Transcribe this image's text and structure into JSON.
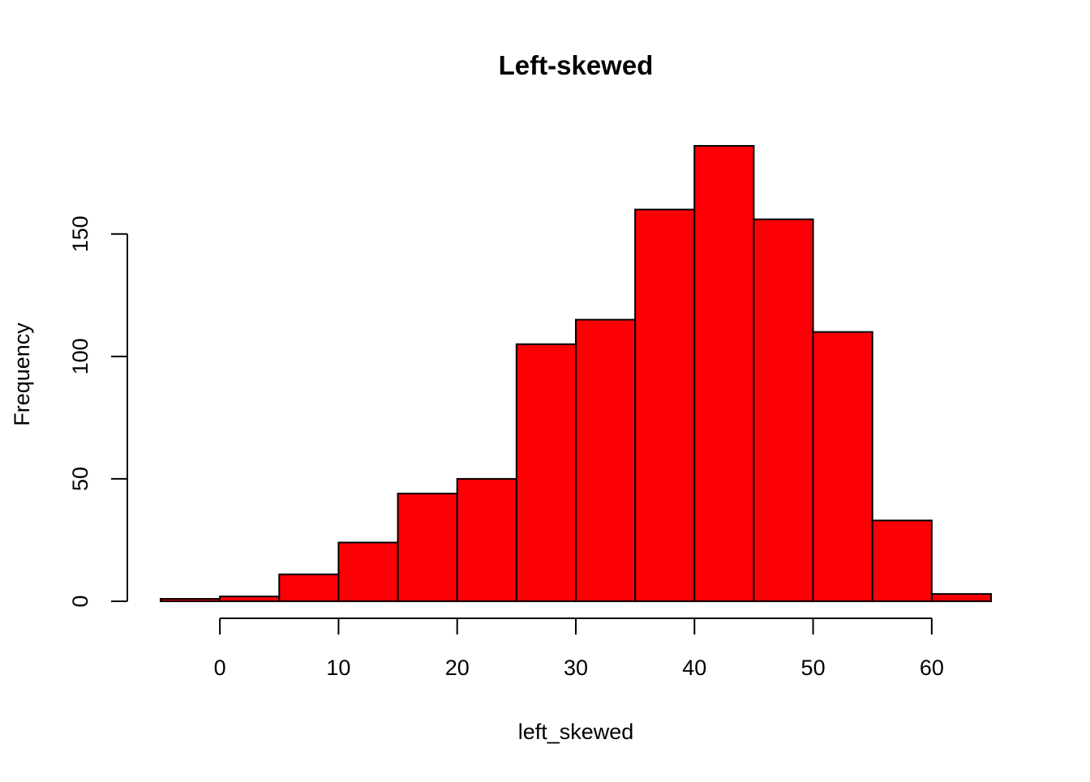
{
  "chart_data": {
    "type": "bar",
    "title": "Left-skewed",
    "xlabel": "left_skewed",
    "ylabel": "Frequency",
    "bins": [
      {
        "x0": -5,
        "x1": 0,
        "count": 1
      },
      {
        "x0": 0,
        "x1": 5,
        "count": 2
      },
      {
        "x0": 5,
        "x1": 10,
        "count": 11
      },
      {
        "x0": 10,
        "x1": 15,
        "count": 24
      },
      {
        "x0": 15,
        "x1": 20,
        "count": 44
      },
      {
        "x0": 20,
        "x1": 25,
        "count": 50
      },
      {
        "x0": 25,
        "x1": 30,
        "count": 105
      },
      {
        "x0": 30,
        "x1": 35,
        "count": 115
      },
      {
        "x0": 35,
        "x1": 40,
        "count": 160
      },
      {
        "x0": 40,
        "x1": 45,
        "count": 186
      },
      {
        "x0": 45,
        "x1": 50,
        "count": 156
      },
      {
        "x0": 50,
        "x1": 55,
        "count": 110
      },
      {
        "x0": 55,
        "x1": 60,
        "count": 33
      },
      {
        "x0": 60,
        "x1": 65,
        "count": 3
      }
    ],
    "xlim": [
      -5,
      65
    ],
    "ylim": [
      0,
      186
    ],
    "x_ticks": [
      "0",
      "10",
      "20",
      "30",
      "40",
      "50",
      "60"
    ],
    "y_ticks": [
      "0",
      "50",
      "100",
      "150"
    ],
    "grid": false,
    "bar_color": "#fc0006",
    "edge_color": "#000000"
  }
}
